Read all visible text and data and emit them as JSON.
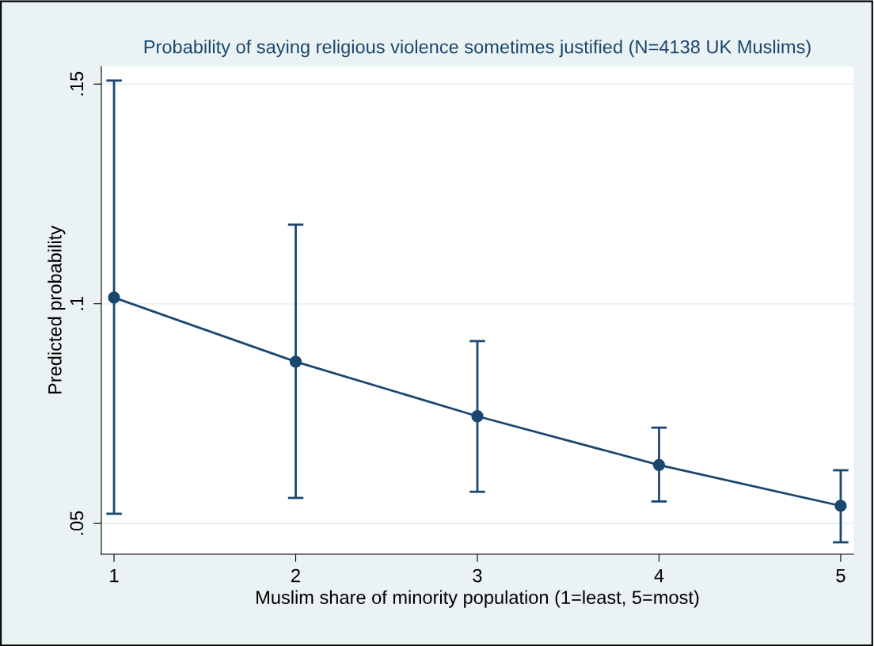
{
  "chart_data": {
    "type": "line",
    "title": "Probability of saying religious violence sometimes justified (N=4138 UK Muslims)",
    "xlabel": "Muslim share of minority population (1=least, 5=most)",
    "ylabel": "Predicted probability",
    "x": [
      1,
      2,
      3,
      4,
      5
    ],
    "series": [
      {
        "color": "#1a476f",
        "values": [
          0.1014,
          0.0868,
          0.0744,
          0.0633,
          0.054
        ],
        "errors": [
          [
            0.0522,
            0.1508
          ],
          [
            0.0558,
            0.118
          ],
          [
            0.0572,
            0.0915
          ],
          [
            0.055,
            0.0718
          ],
          [
            0.0457,
            0.0621
          ]
        ]
      }
    ],
    "xlim": [
      0.93,
      5.07
    ],
    "xticks": [
      1,
      2,
      3,
      4,
      5
    ],
    "ylim": [
      0.043,
      0.154
    ],
    "yticks": [
      {
        "value": 0.05,
        "label": ".05"
      },
      {
        "value": 0.1,
        "label": ".1"
      },
      {
        "value": 0.15,
        "label": ".15"
      }
    ],
    "grid": "y",
    "marker": "circle",
    "line_style": "solid"
  }
}
